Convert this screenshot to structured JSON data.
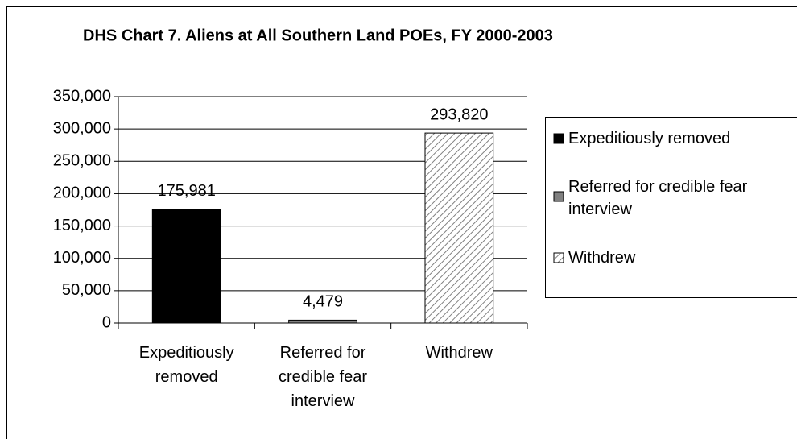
{
  "chart_data": {
    "type": "bar",
    "title": "DHS Chart 7. Aliens at All Southern Land POEs, FY 2000-2003",
    "categories": [
      "Expeditiously removed",
      "Referred for credible fear interview",
      "Withdrew"
    ],
    "values": [
      175981,
      4479,
      293820
    ],
    "value_labels": [
      "175,981",
      "4,479",
      "293,820"
    ],
    "fills": [
      "#000000",
      "#808080",
      "#ffffff"
    ],
    "hatched": [
      false,
      false,
      true
    ],
    "ylim": [
      0,
      350000
    ],
    "yticks": [
      0,
      {
        "value": 50000,
        "label": "50,000"
      },
      {
        "value": 100000,
        "label": "100,000"
      },
      {
        "value": 150000,
        "label": "150,000"
      },
      {
        "value": 200000,
        "label": "200,000"
      },
      {
        "value": 250000,
        "label": "250,000"
      },
      {
        "value": 300000,
        "label": "300,000"
      },
      {
        "value": 350000,
        "label": "350,000"
      }
    ],
    "grid": true,
    "legend": "right"
  }
}
